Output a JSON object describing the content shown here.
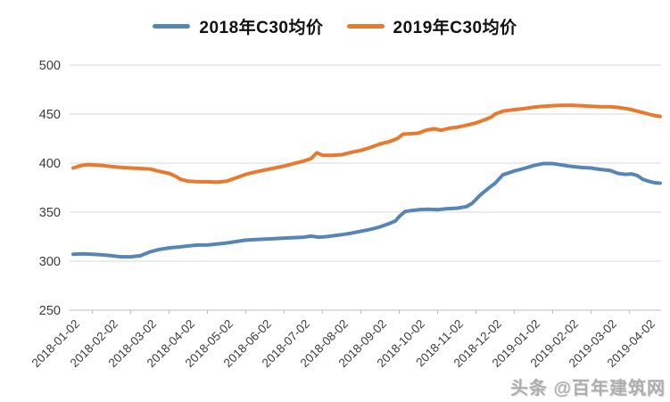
{
  "legend": [
    {
      "label": "2018年C30均价",
      "color": "#5886B4"
    },
    {
      "label": "2019年C30均价",
      "color": "#E8792E"
    }
  ],
  "watermark": "头条 @百年建筑网",
  "chart_data": {
    "type": "line",
    "title": "",
    "xlabel": "",
    "ylabel": "",
    "ylim": [
      250,
      500
    ],
    "y_ticks": [
      250,
      300,
      350,
      400,
      450,
      500
    ],
    "grid": true,
    "legend_position": "top",
    "x_unit": "category_index (0 = 2018-01-02, fractional = weeks within month)",
    "categories": [
      "2018-01-02",
      "2018-02-02",
      "2018-03-02",
      "2018-04-02",
      "2018-05-02",
      "2018-06-02",
      "2018-07-02",
      "2018-08-02",
      "2018-09-02",
      "2018-10-02",
      "2018-11-02",
      "2018-12-02",
      "2019-01-02",
      "2019-02-02",
      "2019-03-02",
      "2019-04-02"
    ],
    "series": [
      {
        "name": "2018年C30均价",
        "color": "#5886B4",
        "points": [
          [
            0,
            307
          ],
          [
            0.25,
            307.5
          ],
          [
            0.5,
            307
          ],
          [
            0.75,
            306.5
          ],
          [
            1,
            305.5
          ],
          [
            1.25,
            304.5
          ],
          [
            1.5,
            304.5
          ],
          [
            1.75,
            305.5
          ],
          [
            2,
            309.5
          ],
          [
            2.25,
            312
          ],
          [
            2.5,
            313.5
          ],
          [
            2.75,
            314.5
          ],
          [
            3,
            315.5
          ],
          [
            3.25,
            316.5
          ],
          [
            3.5,
            316.5
          ],
          [
            3.75,
            317.5
          ],
          [
            4,
            318.5
          ],
          [
            4.25,
            320
          ],
          [
            4.5,
            321.5
          ],
          [
            4.75,
            322
          ],
          [
            5,
            322.5
          ],
          [
            5.25,
            323
          ],
          [
            5.5,
            323.5
          ],
          [
            5.75,
            324
          ],
          [
            6,
            324.5
          ],
          [
            6.2,
            325.5
          ],
          [
            6.4,
            324.5
          ],
          [
            6.6,
            325
          ],
          [
            6.8,
            326
          ],
          [
            7,
            327
          ],
          [
            7.25,
            328.5
          ],
          [
            7.5,
            330.5
          ],
          [
            7.75,
            332.5
          ],
          [
            8,
            335
          ],
          [
            8.25,
            338.5
          ],
          [
            8.4,
            341
          ],
          [
            8.5,
            345.5
          ],
          [
            8.65,
            350.5
          ],
          [
            8.8,
            351.5
          ],
          [
            9,
            352.5
          ],
          [
            9.25,
            353
          ],
          [
            9.5,
            352.5
          ],
          [
            9.75,
            353.5
          ],
          [
            10,
            354
          ],
          [
            10.25,
            355.5
          ],
          [
            10.4,
            359
          ],
          [
            10.6,
            367
          ],
          [
            10.8,
            373.5
          ],
          [
            11,
            379.5
          ],
          [
            11.2,
            388
          ],
          [
            11.5,
            392
          ],
          [
            11.75,
            394.5
          ],
          [
            12,
            397.5
          ],
          [
            12.25,
            399.5
          ],
          [
            12.5,
            399.5
          ],
          [
            12.75,
            398
          ],
          [
            13,
            396.5
          ],
          [
            13.25,
            395.5
          ],
          [
            13.5,
            395
          ],
          [
            13.75,
            393.5
          ],
          [
            14,
            392.5
          ],
          [
            14.2,
            389.5
          ],
          [
            14.4,
            388.5
          ],
          [
            14.55,
            389
          ],
          [
            14.7,
            387.5
          ],
          [
            14.85,
            383.5
          ],
          [
            15,
            381.5
          ],
          [
            15.15,
            380
          ],
          [
            15.3,
            379.5
          ]
        ]
      },
      {
        "name": "2019年C30均价",
        "color": "#E8792E",
        "points": [
          [
            0,
            395
          ],
          [
            0.2,
            397.5
          ],
          [
            0.4,
            398.5
          ],
          [
            0.6,
            398
          ],
          [
            0.8,
            397.5
          ],
          [
            1,
            396.5
          ],
          [
            1.25,
            395.5
          ],
          [
            1.5,
            395
          ],
          [
            1.75,
            394.5
          ],
          [
            2,
            394
          ],
          [
            2.25,
            391.5
          ],
          [
            2.5,
            389.5
          ],
          [
            2.65,
            387
          ],
          [
            2.8,
            383.5
          ],
          [
            3,
            381.5
          ],
          [
            3.25,
            381
          ],
          [
            3.5,
            381
          ],
          [
            3.75,
            380.5
          ],
          [
            4,
            381.5
          ],
          [
            4.25,
            385
          ],
          [
            4.5,
            388.5
          ],
          [
            4.75,
            391
          ],
          [
            5,
            393
          ],
          [
            5.25,
            395
          ],
          [
            5.5,
            397
          ],
          [
            5.75,
            399.5
          ],
          [
            6,
            402
          ],
          [
            6.2,
            404.5
          ],
          [
            6.35,
            410.5
          ],
          [
            6.5,
            408
          ],
          [
            6.75,
            408
          ],
          [
            7,
            408.5
          ],
          [
            7.25,
            411
          ],
          [
            7.5,
            413
          ],
          [
            7.75,
            416
          ],
          [
            8,
            419.5
          ],
          [
            8.25,
            422
          ],
          [
            8.45,
            425
          ],
          [
            8.6,
            429.5
          ],
          [
            8.8,
            430
          ],
          [
            9,
            430.5
          ],
          [
            9.2,
            433.5
          ],
          [
            9.4,
            435
          ],
          [
            9.6,
            433.5
          ],
          [
            9.8,
            435.5
          ],
          [
            10,
            436.5
          ],
          [
            10.25,
            438.5
          ],
          [
            10.5,
            441
          ],
          [
            10.75,
            444.5
          ],
          [
            10.9,
            447
          ],
          [
            11,
            450
          ],
          [
            11.2,
            453
          ],
          [
            11.5,
            454.5
          ],
          [
            11.75,
            455.5
          ],
          [
            12,
            457
          ],
          [
            12.25,
            458
          ],
          [
            12.5,
            458.5
          ],
          [
            12.75,
            459
          ],
          [
            13,
            459
          ],
          [
            13.25,
            458.5
          ],
          [
            13.5,
            458
          ],
          [
            13.75,
            457.5
          ],
          [
            14,
            457.5
          ],
          [
            14.25,
            456.5
          ],
          [
            14.5,
            455
          ],
          [
            14.75,
            452.5
          ],
          [
            15,
            450
          ],
          [
            15.15,
            448.5
          ],
          [
            15.3,
            447.5
          ]
        ]
      }
    ]
  }
}
